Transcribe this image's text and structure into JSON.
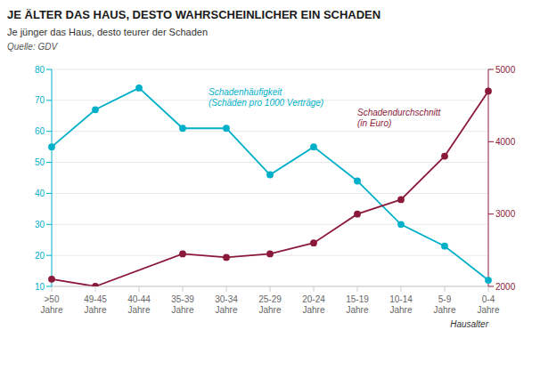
{
  "chart_data": {
    "type": "line",
    "title": "JE ÄLTER DAS HAUS, DESTO WAHRSCHEINLICHER EIN SCHADEN",
    "subtitle": "Je jünger das Haus, desto teurer der Schaden",
    "source": "Quelle: GDV",
    "x_label": "Hausalter",
    "categories": [
      ">50\nJahre",
      "49-45\nJahre",
      "40-44\nJahre",
      "35-39\nJahre",
      "30-34\nJahre",
      "25-29\nJahre",
      "20-24\nJahre",
      "15-19\nJahre",
      "10-14\nJahre",
      "5-9\nJahre",
      "0-4\nJahre"
    ],
    "series": [
      {
        "color": "#00b0c8",
        "axis": "y",
        "values": [
          55,
          67,
          74,
          61,
          61,
          46,
          55,
          44,
          30,
          23,
          12
        ]
      },
      {
        "color": "#8b1a3a",
        "axis": "y2",
        "values": [
          2100,
          2000,
          null,
          2450,
          2400,
          2450,
          2600,
          3000,
          3200,
          3800,
          4700
        ]
      }
    ],
    "annotations": [
      "Schadenhäufigkeit\n(Schäden pro 1000 Verträge)",
      "Schadendurchschnitt\n(in Euro)"
    ],
    "ylim": [
      10,
      80
    ],
    "yticks": [
      10,
      20,
      30,
      40,
      50,
      60,
      70,
      80
    ],
    "y2lim": [
      2000,
      5000
    ],
    "y2ticks": [
      2000,
      3000,
      4000,
      5000
    ],
    "grid": true,
    "marker": "circle"
  }
}
